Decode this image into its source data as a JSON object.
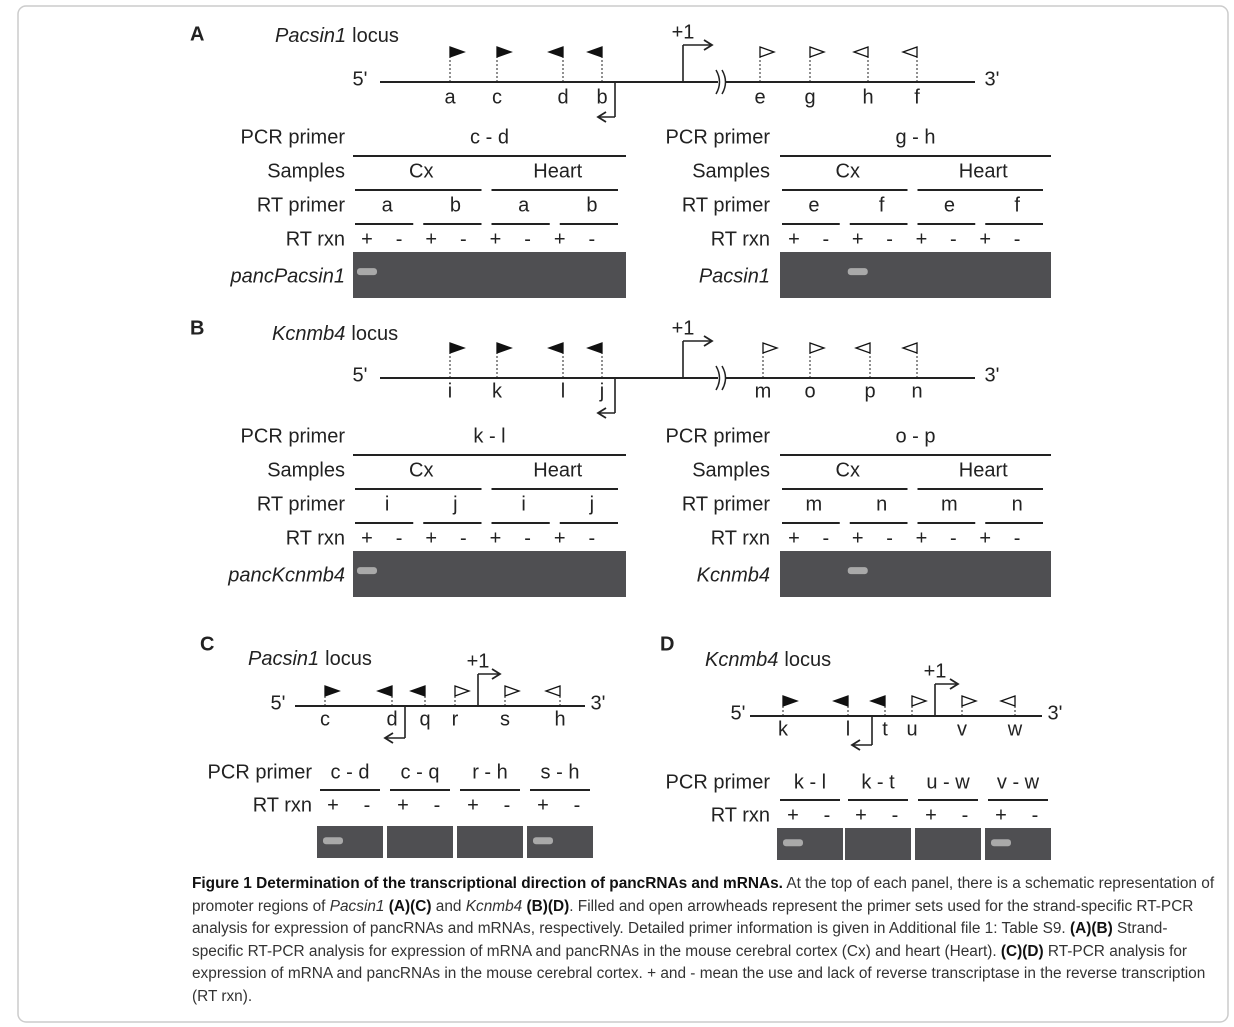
{
  "panels": [
    {
      "letter": "A",
      "gene": "Pacsin1",
      "locus": "locus",
      "five_prime": "5'",
      "three_prime": "3'",
      "tss": "+1",
      "primers": [
        {
          "name": "a",
          "filled": true,
          "direction": "forward"
        },
        {
          "name": "c",
          "filled": true,
          "direction": "forward"
        },
        {
          "name": "d",
          "filled": true,
          "direction": "reverse"
        },
        {
          "name": "b",
          "filled": true,
          "direction": "reverse"
        },
        {
          "name": "e",
          "filled": false,
          "direction": "forward"
        },
        {
          "name": "g",
          "filled": false,
          "direction": "forward"
        },
        {
          "name": "h",
          "filled": false,
          "direction": "reverse"
        },
        {
          "name": "f",
          "filled": false,
          "direction": "reverse"
        }
      ],
      "assays": [
        {
          "pcr_primer_label": "PCR primer",
          "pcr_primer": "c - d",
          "samples_label": "Samples",
          "samples": [
            "Cx",
            "Heart"
          ],
          "rt_primer_label": "RT primer",
          "rt_primers": [
            "a",
            "b",
            "a",
            "b"
          ],
          "rt_rxn_label": "RT rxn",
          "rt_rxn": [
            "+",
            "-",
            "+",
            "-",
            "+",
            "-",
            "+",
            "-"
          ],
          "gel_label": "pancPacsin1",
          "bands": [
            true,
            false,
            false,
            false,
            false,
            false,
            false,
            false
          ]
        },
        {
          "pcr_primer_label": "PCR primer",
          "pcr_primer": "g - h",
          "samples_label": "Samples",
          "samples": [
            "Cx",
            "Heart"
          ],
          "rt_primer_label": "RT primer",
          "rt_primers": [
            "e",
            "f",
            "e",
            "f"
          ],
          "rt_rxn_label": "RT rxn",
          "rt_rxn": [
            "+",
            "-",
            "+",
            "-",
            "+",
            "-",
            "+",
            "-"
          ],
          "gel_label": "Pacsin1",
          "bands": [
            false,
            false,
            true,
            false,
            false,
            false,
            false,
            false
          ]
        }
      ]
    },
    {
      "letter": "B",
      "gene": "Kcnmb4",
      "locus": "locus",
      "five_prime": "5'",
      "three_prime": "3'",
      "tss": "+1",
      "primers": [
        {
          "name": "i",
          "filled": true,
          "direction": "forward"
        },
        {
          "name": "k",
          "filled": true,
          "direction": "forward"
        },
        {
          "name": "l",
          "filled": true,
          "direction": "reverse"
        },
        {
          "name": "j",
          "filled": true,
          "direction": "reverse"
        },
        {
          "name": "m",
          "filled": false,
          "direction": "forward"
        },
        {
          "name": "o",
          "filled": false,
          "direction": "forward"
        },
        {
          "name": "p",
          "filled": false,
          "direction": "reverse"
        },
        {
          "name": "n",
          "filled": false,
          "direction": "reverse"
        }
      ],
      "assays": [
        {
          "pcr_primer_label": "PCR primer",
          "pcr_primer": "k - l",
          "samples_label": "Samples",
          "samples": [
            "Cx",
            "Heart"
          ],
          "rt_primer_label": "RT primer",
          "rt_primers": [
            "i",
            "j",
            "i",
            "j"
          ],
          "rt_rxn_label": "RT rxn",
          "rt_rxn": [
            "+",
            "-",
            "+",
            "-",
            "+",
            "-",
            "+",
            "-"
          ],
          "gel_label": "pancKcnmb4",
          "bands": [
            true,
            false,
            false,
            false,
            false,
            false,
            false,
            false
          ]
        },
        {
          "pcr_primer_label": "PCR primer",
          "pcr_primer": "o - p",
          "samples_label": "Samples",
          "samples": [
            "Cx",
            "Heart"
          ],
          "rt_primer_label": "RT primer",
          "rt_primers": [
            "m",
            "n",
            "m",
            "n"
          ],
          "rt_rxn_label": "RT rxn",
          "rt_rxn": [
            "+",
            "-",
            "+",
            "-",
            "+",
            "-",
            "+",
            "-"
          ],
          "gel_label": "Kcnmb4",
          "bands": [
            false,
            false,
            true,
            false,
            false,
            false,
            false,
            false
          ]
        }
      ]
    },
    {
      "letter": "C",
      "gene": "Pacsin1",
      "locus": "locus",
      "five_prime": "5'",
      "three_prime": "3'",
      "tss": "+1",
      "primers": [
        {
          "name": "c",
          "filled": true,
          "direction": "forward"
        },
        {
          "name": "d",
          "filled": true,
          "direction": "reverse"
        },
        {
          "name": "q",
          "filled": true,
          "direction": "reverse"
        },
        {
          "name": "r",
          "filled": false,
          "direction": "forward"
        },
        {
          "name": "s",
          "filled": false,
          "direction": "forward"
        },
        {
          "name": "h",
          "filled": false,
          "direction": "reverse"
        }
      ],
      "pcr_primer_label": "PCR primer",
      "rt_rxn_label": "RT rxn",
      "pairs": [
        {
          "primer": "c - d",
          "rt_rxn": [
            "+",
            "-"
          ],
          "bands": [
            true,
            false
          ]
        },
        {
          "primer": "c - q",
          "rt_rxn": [
            "+",
            "-"
          ],
          "bands": [
            false,
            false
          ]
        },
        {
          "primer": "r - h",
          "rt_rxn": [
            "+",
            "-"
          ],
          "bands": [
            false,
            false
          ]
        },
        {
          "primer": "s - h",
          "rt_rxn": [
            "+",
            "-"
          ],
          "bands": [
            true,
            false
          ]
        }
      ]
    },
    {
      "letter": "D",
      "gene": "Kcnmb4",
      "locus": "locus",
      "five_prime": "5'",
      "three_prime": "3'",
      "tss": "+1",
      "primers": [
        {
          "name": "k",
          "filled": true,
          "direction": "forward"
        },
        {
          "name": "l",
          "filled": true,
          "direction": "reverse"
        },
        {
          "name": "t",
          "filled": true,
          "direction": "reverse"
        },
        {
          "name": "u",
          "filled": false,
          "direction": "forward"
        },
        {
          "name": "v",
          "filled": false,
          "direction": "forward"
        },
        {
          "name": "w",
          "filled": false,
          "direction": "reverse"
        }
      ],
      "pcr_primer_label": "PCR primer",
      "rt_rxn_label": "RT rxn",
      "pairs": [
        {
          "primer": "k - l",
          "rt_rxn": [
            "+",
            "-"
          ],
          "bands": [
            true,
            false
          ]
        },
        {
          "primer": "k - t",
          "rt_rxn": [
            "+",
            "-"
          ],
          "bands": [
            false,
            false
          ]
        },
        {
          "primer": "u - w",
          "rt_rxn": [
            "+",
            "-"
          ],
          "bands": [
            false,
            false
          ]
        },
        {
          "primer": "v - w",
          "rt_rxn": [
            "+",
            "-"
          ],
          "bands": [
            true,
            false
          ]
        }
      ]
    }
  ],
  "caption": [
    {
      "text": "Figure 1 Determination of the transcriptional direction of pancRNAs and mRNAs.",
      "style": "bold"
    },
    {
      "text": " At the top of each panel, there is a schematic representation of promoter regions of ",
      "style": "normal"
    },
    {
      "text": "Pacsin1",
      "style": "italic"
    },
    {
      "text": " (A)(C)",
      "style": "bold"
    },
    {
      "text": " and ",
      "style": "normal"
    },
    {
      "text": "Kcnmb4",
      "style": "italic"
    },
    {
      "text": " (B)(D)",
      "style": "bold"
    },
    {
      "text": ". Filled and open arrowheads represent the primer sets used for the strand-specific RT-PCR analysis for expression of pancRNAs and mRNAs, respectively. Detailed primer information is given in Additional file 1: Table S9. ",
      "style": "normal"
    },
    {
      "text": "(A)(B)",
      "style": "bold"
    },
    {
      "text": " Strand-specific RT-PCR analysis for expression of mRNA and pancRNAs in the mouse cerebral cortex (Cx) and heart (Heart). ",
      "style": "normal"
    },
    {
      "text": "(C)(D)",
      "style": "bold"
    },
    {
      "text": " RT-PCR analysis for expression of mRNA and pancRNAs in the mouse cerebral cortex. + and - mean the use and lack of reverse transcriptase in the reverse transcription (RT rxn).",
      "style": "normal"
    }
  ]
}
